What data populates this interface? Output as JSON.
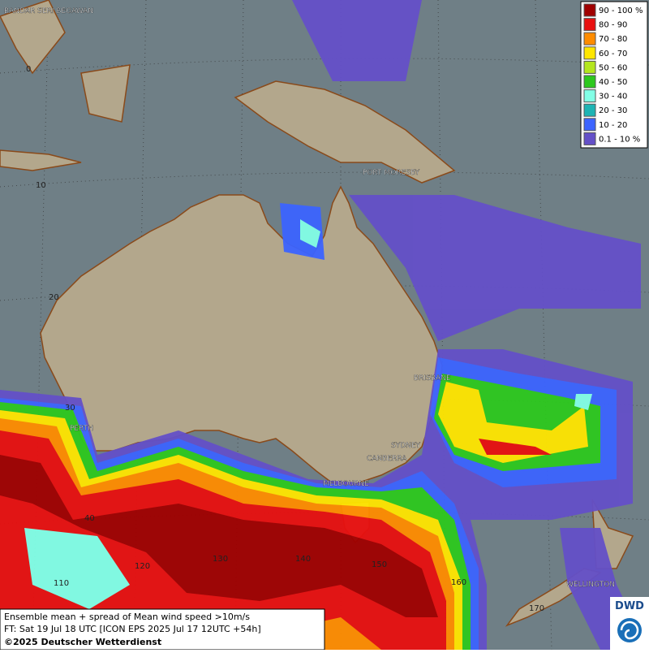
{
  "legend": {
    "items": [
      {
        "label": "90 - 100 %",
        "color": "#a00000"
      },
      {
        "label": "80 - 90",
        "color": "#e81010"
      },
      {
        "label": "70 - 80",
        "color": "#ff8c00"
      },
      {
        "label": "60 - 70",
        "color": "#ffe600"
      },
      {
        "label": "50 - 60",
        "color": "#b4e61e"
      },
      {
        "label": "40 - 50",
        "color": "#2dc81e"
      },
      {
        "label": "30 - 40",
        "color": "#82ffe6"
      },
      {
        "label": "20 - 30",
        "color": "#1eb4b4"
      },
      {
        "label": "10 - 20",
        "color": "#3c64ff"
      },
      {
        "label": "0.1 - 10 %",
        "color": "#6450c8"
      }
    ]
  },
  "cities": [
    "BANDAR SERI BEGAWAN",
    "PORT MORESBY",
    "BRISBANE",
    "PERTH",
    "SYDNEY",
    "CANBERRA",
    "MELBOURNE",
    "WELLINGTON"
  ],
  "grid_labels": [
    "0",
    "10",
    "20",
    "30",
    "40",
    "110",
    "120",
    "130",
    "140",
    "150",
    "160",
    "170"
  ],
  "caption": {
    "line1": "Ensemble mean + spread of Mean wind speed >10m/s",
    "line2": "FT: Sat 19 Jul 18 UTC [ICON EPS 2025 Jul 17 12UTC +54h]",
    "line3": "©2025 Deutscher Wetterdienst"
  },
  "logo": "DWD"
}
